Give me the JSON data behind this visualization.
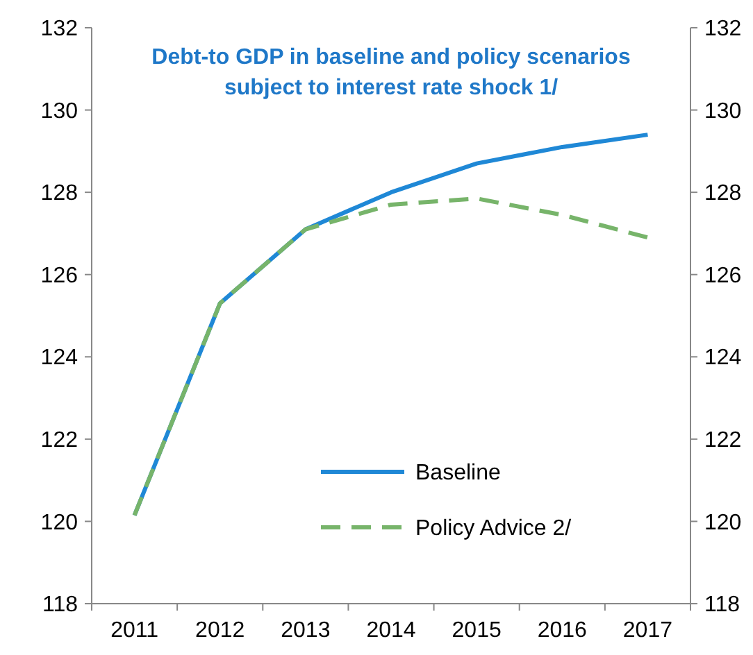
{
  "chart_data": {
    "type": "line",
    "title": "Debt-to GDP in baseline and policy scenarios subject to interest rate shock 1/",
    "categories": [
      "2011",
      "2012",
      "2013",
      "2014",
      "2015",
      "2016",
      "2017"
    ],
    "series": [
      {
        "name": "Baseline",
        "color": "#1f88d6",
        "values": [
          120.15,
          125.3,
          127.1,
          128.0,
          128.7,
          129.1,
          129.4
        ],
        "line_style": "solid"
      },
      {
        "name": "Policy Advice 2/",
        "color": "#77b46a",
        "values": [
          120.15,
          125.3,
          127.1,
          127.7,
          127.85,
          127.45,
          126.9
        ],
        "line_style": "dashed"
      }
    ],
    "ylim": [
      118,
      132
    ],
    "yticks": [
      118,
      120,
      122,
      124,
      126,
      128,
      130,
      132
    ],
    "y2lim": [
      118,
      132
    ],
    "y2ticks": [
      118,
      120,
      122,
      124,
      126,
      128,
      130,
      132
    ],
    "legend": "bottom right",
    "grid": false,
    "marker": "none"
  }
}
